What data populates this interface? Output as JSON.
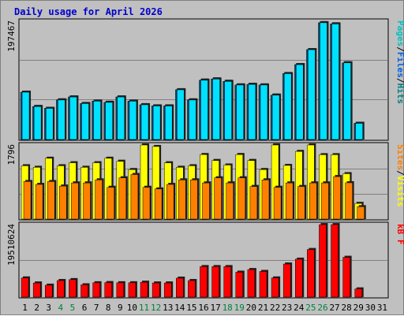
{
  "chart_data": {
    "type": "bar",
    "title": "Daily usage for April 2026",
    "categories": [
      "1",
      "2",
      "3",
      "4",
      "5",
      "6",
      "7",
      "8",
      "9",
      "10",
      "11",
      "12",
      "13",
      "14",
      "15",
      "16",
      "17",
      "18",
      "19",
      "20",
      "21",
      "22",
      "23",
      "24",
      "25",
      "26",
      "27",
      "28",
      "29",
      "30",
      "31"
    ],
    "weekend_days": [
      4,
      5,
      11,
      12,
      18,
      19,
      25,
      26
    ],
    "panels": [
      {
        "max_label": "197467",
        "max": 197467,
        "legend": [
          {
            "text": "Pages",
            "color": "#00c0c0"
          },
          {
            "text": "/",
            "color": "#000000"
          },
          {
            "text": "Files",
            "color": "#0060e0"
          },
          {
            "text": "/",
            "color": "#000000"
          },
          {
            "text": "Hits",
            "color": "#008080"
          }
        ],
        "series": [
          {
            "name": "Hits",
            "color": "#00a0a0",
            "values": [
              79000,
              55000,
              52000,
              66000,
              71000,
              60000,
              64000,
              62000,
              71000,
              64000,
              58000,
              56000,
              56000,
              83000,
              66000,
              99000,
              101000,
              97000,
              91000,
              92000,
              91000,
              74000,
              110000,
              125000,
              150000,
              195000,
              193000,
              128000,
              27000,
              0,
              0
            ]
          },
          {
            "name": "Files",
            "color": "#0060e0",
            "values": [
              79000,
              55000,
              52000,
              66000,
              71000,
              60000,
              64000,
              62000,
              71000,
              64000,
              58000,
              56000,
              56000,
              83000,
              66000,
              99000,
              101000,
              97000,
              91000,
              92000,
              91000,
              74000,
              110000,
              125000,
              150000,
              195000,
              193000,
              128000,
              27000,
              0,
              0
            ]
          },
          {
            "name": "Pages",
            "color": "#00e0ff",
            "values": [
              79000,
              55000,
              52000,
              66000,
              71000,
              60000,
              64000,
              62000,
              71000,
              64000,
              58000,
              56000,
              56000,
              83000,
              66000,
              99000,
              101000,
              97000,
              91000,
              92000,
              91000,
              74000,
              110000,
              125000,
              150000,
              195000,
              193000,
              128000,
              27000,
              0,
              0
            ]
          }
        ]
      },
      {
        "max_label": "1796",
        "max": 1796,
        "legend": [
          {
            "text": "Sites",
            "color": "#ff8000"
          },
          {
            "text": "/",
            "color": "#000000"
          },
          {
            "text": "Visits",
            "color": "#ffff00"
          }
        ],
        "series": [
          {
            "name": "Visits",
            "color": "#ffff00",
            "values": [
              1292,
              1255,
              1474,
              1292,
              1365,
              1255,
              1365,
              1474,
              1401,
              1200,
              1796,
              1759,
              1364,
              1255,
              1292,
              1564,
              1420,
              1310,
              1564,
              1420,
              1200,
              1796,
              1300,
              1640,
              1796,
              1560,
              1560,
              1100,
              380,
              0,
              0
            ]
          },
          {
            "name": "Sites",
            "color": "#ff8000",
            "values": [
              910,
              840,
              910,
              800,
              876,
              876,
              950,
              770,
              1000,
              1080,
              770,
              730,
              840,
              950,
              950,
              876,
              1000,
              876,
              1000,
              790,
              950,
              770,
              876,
              790,
              876,
              876,
              1030,
              880,
              300,
              0,
              0
            ]
          }
        ]
      },
      {
        "max_label": "19510624",
        "max": 19510624,
        "legend": [
          {
            "text": "kB F",
            "color": "#ff0000"
          }
        ],
        "series": [
          {
            "name": "kB F",
            "color": "#ff0000",
            "values": [
              5150000,
              3800000,
              3200000,
              4450000,
              4700000,
              3300000,
              3850000,
              3900000,
              3850000,
              3850000,
              4000000,
              3800000,
              3800000,
              5100000,
              4450000,
              8200000,
              8200000,
              8200000,
              6700000,
              7400000,
              6900000,
              5150000,
              8900000,
              10200000,
              12800000,
              19500000,
              19500000,
              10700000,
              2200000,
              0,
              0
            ]
          }
        ]
      }
    ]
  }
}
